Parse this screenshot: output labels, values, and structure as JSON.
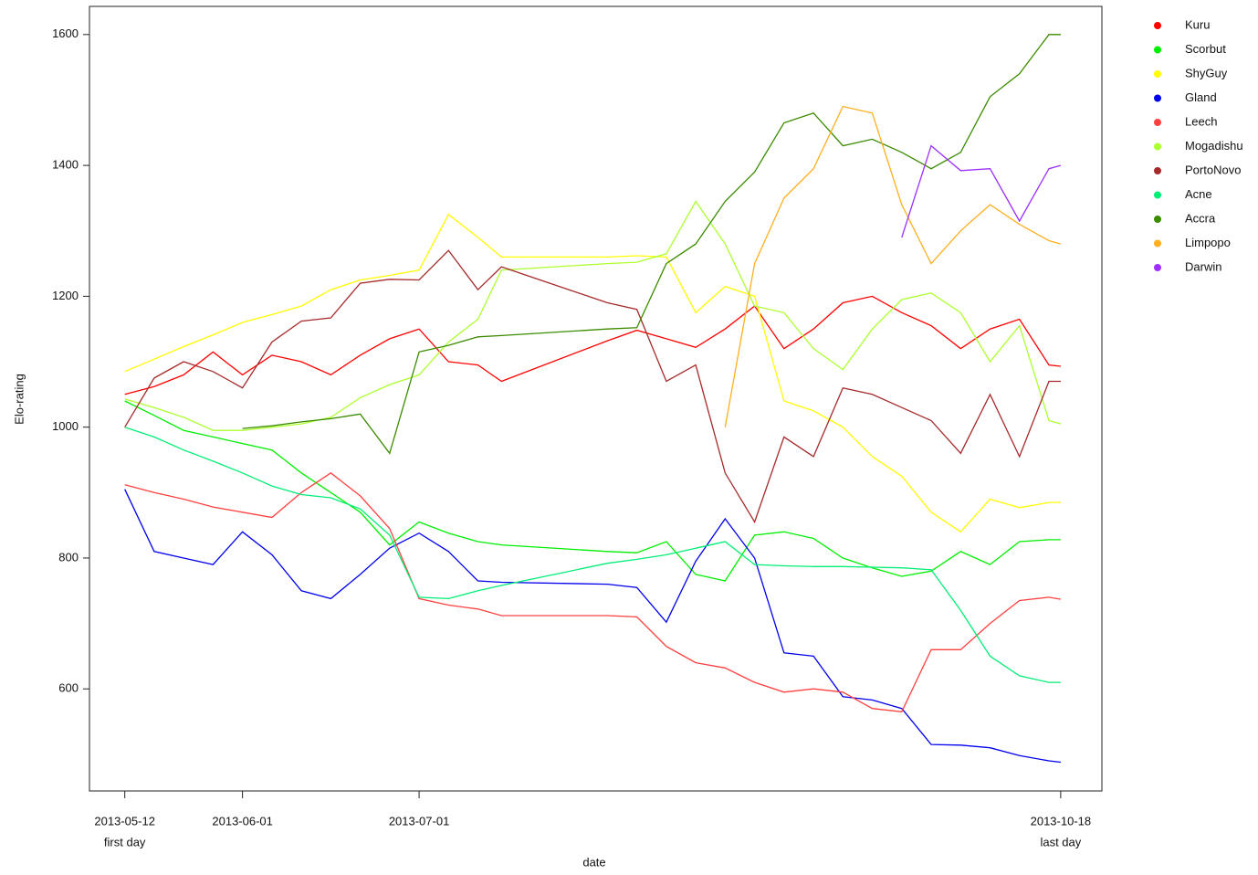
{
  "chart_data": {
    "type": "line",
    "x_label": "date",
    "y_label": "Elo-rating",
    "legend": "top-right",
    "grid": false,
    "xlim": [
      "2013-05-06",
      "2013-10-25"
    ],
    "ylim": [
      444,
      1643
    ],
    "yticks": [
      600,
      800,
      1000,
      1200,
      1400,
      1600
    ],
    "xticks": [
      {
        "value": "2013-05-12",
        "label": "2013-05-12",
        "note": "first day"
      },
      "2013-06-01",
      "2013-07-01",
      {
        "value": "2013-10-18",
        "label": "2013-10-18",
        "note": "last day"
      }
    ],
    "x": [
      "2013-05-12",
      "2013-05-17",
      "2013-05-22",
      "2013-05-27",
      "2013-06-01",
      "2013-06-06",
      "2013-06-11",
      "2013-06-16",
      "2013-06-21",
      "2013-06-26",
      "2013-07-01",
      "2013-07-06",
      "2013-07-11",
      "2013-07-15",
      "2013-08-02",
      "2013-08-07",
      "2013-08-12",
      "2013-08-17",
      "2013-08-22",
      "2013-08-27",
      "2013-09-01",
      "2013-09-06",
      "2013-09-11",
      "2013-09-16",
      "2013-09-21",
      "2013-09-26",
      "2013-10-01",
      "2013-10-06",
      "2013-10-11",
      "2013-10-16",
      "2013-10-18"
    ],
    "series": [
      {
        "name": "Kuru",
        "color": "#ff0000",
        "values": [
          1050,
          1062,
          1080,
          1115,
          1080,
          1110,
          1100,
          1080,
          1110,
          1135,
          1150,
          1100,
          1095,
          1070,
          1132,
          1148,
          1135,
          1122,
          1150,
          1185,
          1120,
          1150,
          1190,
          1200,
          1175,
          1155,
          1120,
          1150,
          1165,
          1095,
          1093
        ]
      },
      {
        "name": "Scorbut",
        "color": "#00ee00",
        "values": [
          1040,
          1018,
          995,
          985,
          975,
          965,
          930,
          900,
          870,
          820,
          855,
          838,
          825,
          820,
          810,
          808,
          825,
          775,
          765,
          835,
          840,
          830,
          800,
          785,
          772,
          780,
          810,
          790,
          825,
          828,
          828
        ]
      },
      {
        "name": "ShyGuy",
        "color": "#ffff00",
        "values": [
          1085,
          1104,
          1123,
          1141,
          1160,
          1172,
          1185,
          1210,
          1225,
          1232,
          1240,
          1325,
          1290,
          1260,
          1260,
          1262,
          1260,
          1175,
          1215,
          1200,
          1040,
          1025,
          1000,
          955,
          925,
          870,
          840,
          890,
          877,
          885,
          885
        ]
      },
      {
        "name": "Gland",
        "color": "#0000ee",
        "values": [
          905,
          810,
          800,
          790,
          840,
          805,
          750,
          738,
          775,
          815,
          838,
          810,
          765,
          763,
          760,
          755,
          702,
          795,
          860,
          800,
          655,
          650,
          588,
          583,
          570,
          515,
          514,
          510,
          498,
          490,
          488
        ]
      },
      {
        "name": "Leech",
        "color": "#ff4040",
        "values": [
          912,
          900,
          890,
          878,
          870,
          862,
          900,
          930,
          895,
          845,
          738,
          728,
          722,
          712,
          712,
          710,
          665,
          640,
          632,
          610,
          595,
          600,
          595,
          570,
          565,
          660,
          660,
          700,
          735,
          740,
          737
        ]
      },
      {
        "name": "Mogadishu",
        "color": "#adff2f",
        "values": [
          1043,
          1030,
          1015,
          995,
          995,
          1000,
          1005,
          1015,
          1045,
          1065,
          1080,
          1130,
          1165,
          1240,
          1250,
          1252,
          1265,
          1345,
          1280,
          1185,
          1175,
          1120,
          1088,
          1150,
          1195,
          1205,
          1175,
          1100,
          1155,
          1010,
          1005
        ]
      },
      {
        "name": "PortoNovo",
        "color": "#a52a2a",
        "values": [
          1000,
          1075,
          1100,
          1085,
          1060,
          1130,
          1162,
          1167,
          1220,
          1226,
          1225,
          1270,
          1210,
          1245,
          1190,
          1180,
          1070,
          1095,
          930,
          855,
          985,
          955,
          1060,
          1050,
          1030,
          1010,
          960,
          1050,
          955,
          1070,
          1070
        ]
      },
      {
        "name": "Acne",
        "color": "#00ee76",
        "values": [
          1000,
          985,
          965,
          948,
          930,
          910,
          897,
          892,
          875,
          835,
          740,
          738,
          750,
          758,
          792,
          798,
          805,
          815,
          825,
          790,
          788,
          787,
          787,
          786,
          785,
          782,
          720,
          650,
          620,
          610,
          610
        ]
      },
      {
        "name": "Accra",
        "color": "#3b8b00",
        "values": [
          null,
          null,
          null,
          null,
          998,
          1002,
          1008,
          1013,
          1020,
          960,
          1115,
          1125,
          1138,
          1140,
          1150,
          1152,
          1250,
          1280,
          1345,
          1390,
          1465,
          1480,
          1430,
          1440,
          1420,
          1395,
          1420,
          1505,
          1540,
          1600,
          1600
        ]
      },
      {
        "name": "Limpopo",
        "color": "#ffb020",
        "values": [
          null,
          null,
          null,
          null,
          null,
          null,
          null,
          null,
          null,
          null,
          null,
          null,
          null,
          null,
          null,
          null,
          null,
          null,
          1000,
          1250,
          1350,
          1395,
          1490,
          1480,
          1340,
          1250,
          1300,
          1340,
          1310,
          1285,
          1280
        ]
      },
      {
        "name": "Darwin",
        "color": "#9b30ff",
        "values": [
          null,
          null,
          null,
          null,
          null,
          null,
          null,
          null,
          null,
          null,
          null,
          null,
          null,
          null,
          null,
          null,
          null,
          null,
          null,
          null,
          null,
          null,
          null,
          null,
          1290,
          1430,
          1392,
          1395,
          1315,
          1395,
          1400
        ]
      }
    ]
  }
}
